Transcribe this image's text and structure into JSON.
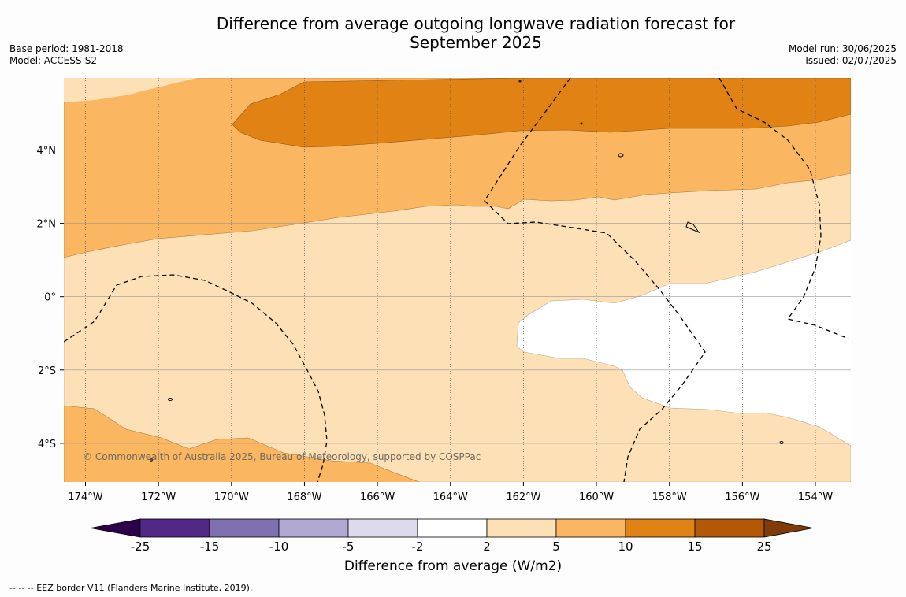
{
  "title_line1": "Difference from average outgoing longwave radiation forecast for",
  "title_line2": "September 2025",
  "base_period": "Base period: 1981-2018",
  "model": "Model: ACCESS-S2",
  "model_run": "Model run: 30/06/2025",
  "issued": "Issued: 02/07/2025",
  "copyright": "© Commonwealth of Australia 2025, Bureau of Meteorology, supported by COSPPac",
  "footnote": "--  --  -- EEZ border V11 (Flanders Marine Institute, 2019).",
  "x_ticks": [
    "174°W",
    "172°W",
    "170°W",
    "168°W",
    "166°W",
    "164°W",
    "162°W",
    "160°W",
    "158°W",
    "156°W",
    "154°W"
  ],
  "y_ticks": [
    "4°N",
    "2°N",
    "0°",
    "2°S",
    "4°S"
  ],
  "colorbar": {
    "label": "Difference from average (W/m2)",
    "tick_labels": [
      "-25",
      "-15",
      "-10",
      "-5",
      "-2",
      "2",
      "5",
      "10",
      "15",
      "25"
    ],
    "colors": [
      "#522885",
      "#7e6faf",
      "#b1a9d3",
      "#dcdaec",
      "#ffffff",
      "#fde0b6",
      "#fbb661",
      "#e08214",
      "#b35806"
    ],
    "under_color": "#2d004b",
    "over_color": "#7f3b08"
  },
  "map_colors": {
    "light": "#fde0b6",
    "mid": "#fbb661",
    "dark": "#e08214",
    "neutral": "#ffffff"
  }
}
